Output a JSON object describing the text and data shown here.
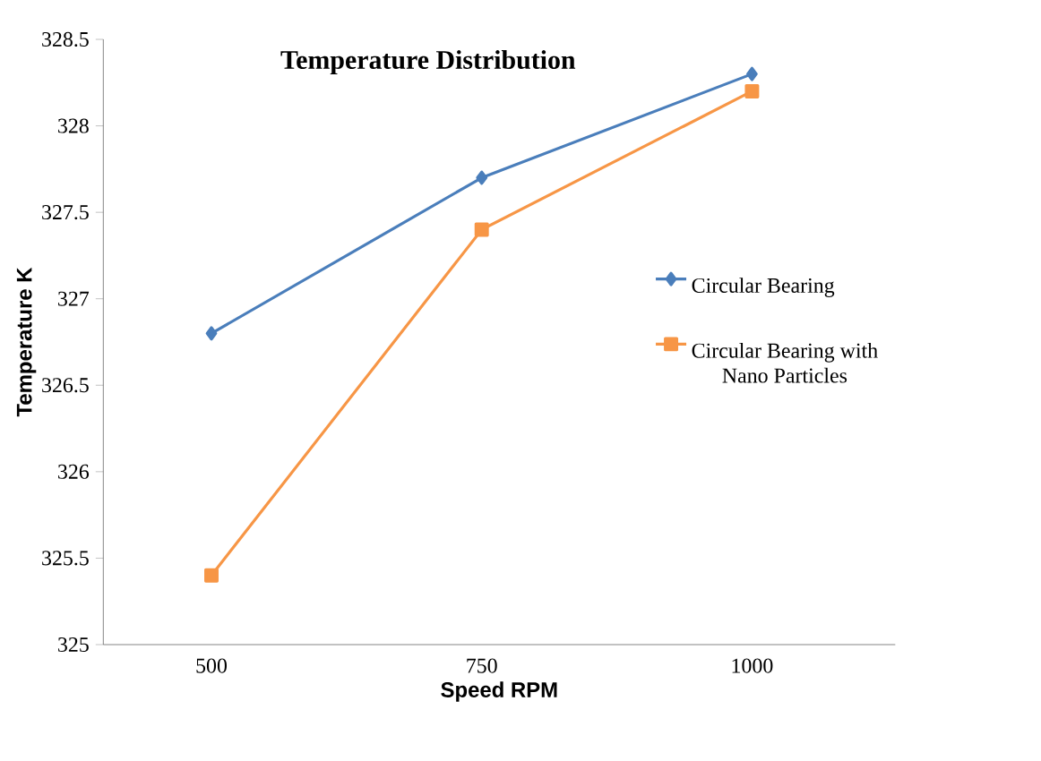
{
  "chart_data": {
    "type": "line",
    "title": "Temperature Distribution",
    "xlabel": "Speed RPM",
    "ylabel": "Temperature K",
    "categories": [
      "500",
      "750",
      "1000"
    ],
    "series": [
      {
        "name": "Circular Bearing",
        "color": "#4a7ebb",
        "marker": "diamond",
        "values": [
          326.8,
          327.7,
          328.3
        ]
      },
      {
        "name": "Circular Bearing with Nano Particles",
        "color": "#f79646",
        "marker": "square",
        "values": [
          325.4,
          327.4,
          328.2
        ]
      }
    ],
    "ylim": [
      325,
      328.5
    ],
    "yticks": [
      325,
      325.5,
      326,
      326.5,
      327,
      327.5,
      328,
      328.5
    ],
    "grid": false,
    "legend": "right",
    "line_style": "solid"
  }
}
